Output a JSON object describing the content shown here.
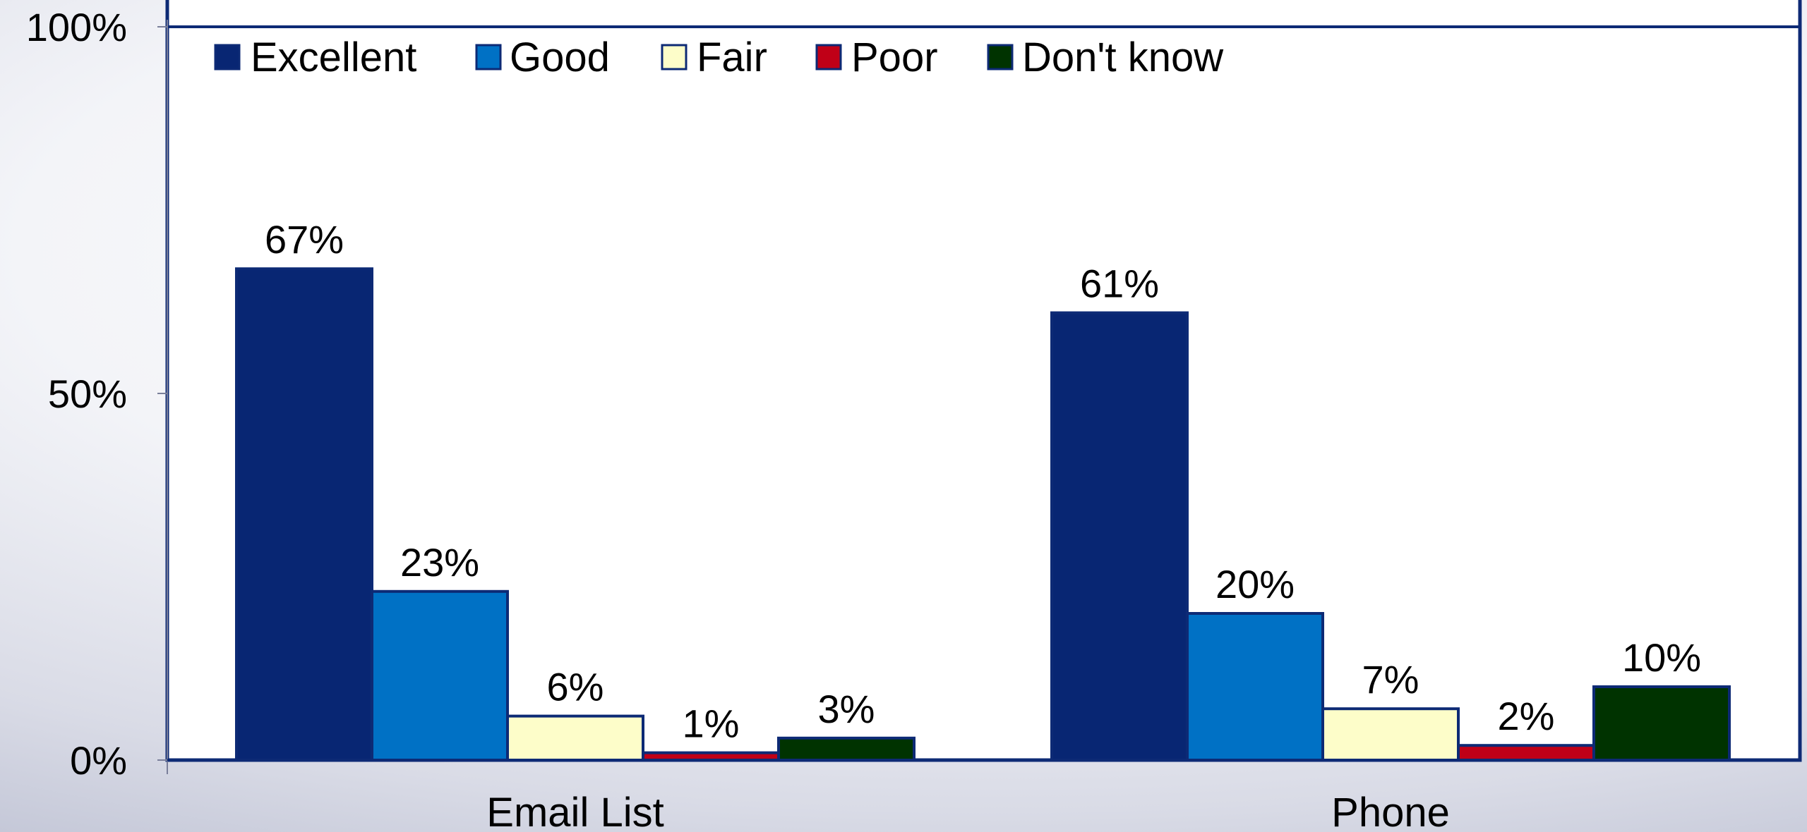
{
  "chart_data": {
    "type": "bar",
    "categories": [
      "Email List",
      "Phone"
    ],
    "series": [
      {
        "name": "Excellent",
        "values": [
          67,
          61
        ],
        "labels": [
          "67%",
          "61%"
        ],
        "color": "#082673"
      },
      {
        "name": "Good",
        "values": [
          23,
          20
        ],
        "labels": [
          "23%",
          "20%"
        ],
        "color": "#0071c5"
      },
      {
        "name": "Fair",
        "values": [
          6,
          7
        ],
        "labels": [
          "6%",
          "7%"
        ],
        "color": "#fdfdc9"
      },
      {
        "name": "Poor",
        "values": [
          1,
          2
        ],
        "labels": [
          "1%",
          "2%"
        ],
        "color": "#c00017"
      },
      {
        "name": "Don't know",
        "values": [
          3,
          10
        ],
        "labels": [
          "3%",
          "10%"
        ],
        "color": "#003300"
      }
    ],
    "y_ticks": [
      {
        "value": 0,
        "label": "0%"
      },
      {
        "value": 50,
        "label": "50%"
      },
      {
        "value": 100,
        "label": "100%"
      }
    ],
    "ylim": [
      0,
      100
    ],
    "legend_position": "top-left",
    "grid": false,
    "title": "",
    "xlabel": "",
    "ylabel": ""
  }
}
